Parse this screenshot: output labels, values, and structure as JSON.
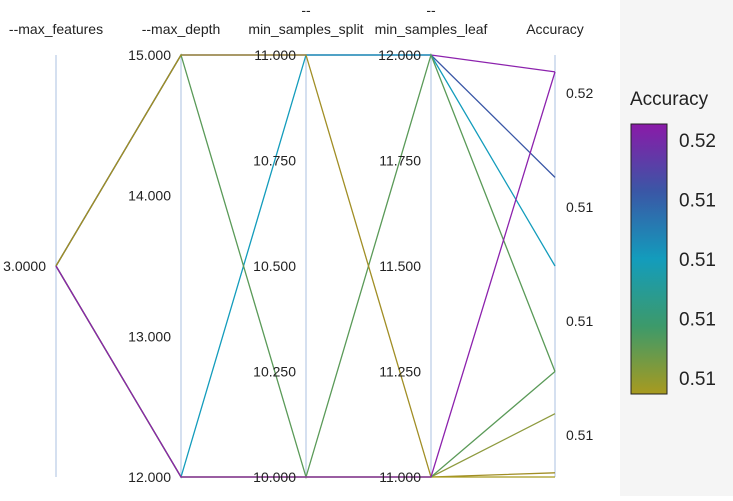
{
  "chart_data": {
    "type": "parallel_coordinates",
    "axes": [
      {
        "key": "max_features",
        "title_prefix": "",
        "title": "--max_features",
        "ticks": [
          "3.0000"
        ],
        "tick_values": [
          3.0
        ],
        "range": [
          2.5,
          3.5
        ]
      },
      {
        "key": "max_depth",
        "title_prefix": "",
        "title": "--max_depth",
        "ticks": [
          "15.000",
          "14.000",
          "13.000",
          "12.000"
        ],
        "tick_values": [
          15,
          14,
          13,
          12
        ],
        "range": [
          12,
          15
        ]
      },
      {
        "key": "min_samples_split",
        "title_prefix": "--",
        "title": "min_samples_split",
        "ticks": [
          "11.000",
          "10.750",
          "10.500",
          "10.250",
          "10.000"
        ],
        "tick_values": [
          11,
          10.75,
          10.5,
          10.25,
          10
        ],
        "range": [
          10,
          11
        ]
      },
      {
        "key": "min_samples_leaf",
        "title_prefix": "--",
        "title": "min_samples_leaf",
        "ticks": [
          "12.000",
          "11.750",
          "11.500",
          "11.250",
          "11.000"
        ],
        "tick_values": [
          12,
          11.75,
          11.5,
          11.25,
          11
        ],
        "range": [
          11,
          12
        ]
      },
      {
        "key": "accuracy",
        "title_prefix": "",
        "title": "Accuracy",
        "ticks": [
          "0.52",
          "0.51",
          "0.51",
          "0.51"
        ],
        "tick_values": [
          0.5185,
          0.5158,
          0.5131,
          0.5104
        ],
        "range": [
          0.5094,
          0.5194
        ]
      }
    ],
    "runs": [
      {
        "max_features": 3,
        "max_depth": 15,
        "min_samples_split": 11,
        "min_samples_leaf": 12,
        "accuracy": 0.519,
        "color": "#8c22ad"
      },
      {
        "max_features": 3,
        "max_depth": 15,
        "min_samples_split": 11,
        "min_samples_leaf": 12,
        "accuracy": 0.5165,
        "color": "#3a57a6"
      },
      {
        "max_features": 3,
        "max_depth": 12,
        "min_samples_split": 11,
        "min_samples_leaf": 12,
        "accuracy": 0.5144,
        "color": "#139cbc"
      },
      {
        "max_features": 3,
        "max_depth": 15,
        "min_samples_split": 10,
        "min_samples_leaf": 12,
        "accuracy": 0.5119,
        "color": "#5a9a58"
      },
      {
        "max_features": 3,
        "max_depth": 15,
        "min_samples_split": 11,
        "min_samples_leaf": 11,
        "accuracy": 0.5095,
        "color": "#a18e25"
      },
      {
        "max_features": 3,
        "max_depth": 12,
        "min_samples_split": 10,
        "min_samples_leaf": 11,
        "accuracy": 0.5094,
        "color": "#a89a1f"
      },
      {
        "max_features": 3,
        "max_depth": 12,
        "min_samples_split": 10,
        "min_samples_leaf": 11,
        "accuracy": 0.5109,
        "color": "#8e9a3e"
      },
      {
        "max_features": 3,
        "max_depth": 12,
        "min_samples_split": 10,
        "min_samples_leaf": 11,
        "accuracy": 0.5119,
        "color": "#5a9a58"
      },
      {
        "max_features": 3,
        "max_depth": 12,
        "min_samples_split": 10,
        "min_samples_leaf": 11,
        "accuracy": 0.519,
        "color": "#8c22ad"
      }
    ],
    "legend": {
      "title": "Accuracy",
      "labels": [
        "0.52",
        "0.51",
        "0.51",
        "0.51",
        "0.51"
      ],
      "gradient": [
        "#8a1aa8",
        "#3a57a6",
        "#139cbc",
        "#3d9a6a",
        "#a89a1f"
      ]
    },
    "colors": {
      "axis_line": "#c7d6ec",
      "text": "#222222",
      "background": "#ffffff",
      "legend_background": "#f5f5f5"
    }
  }
}
